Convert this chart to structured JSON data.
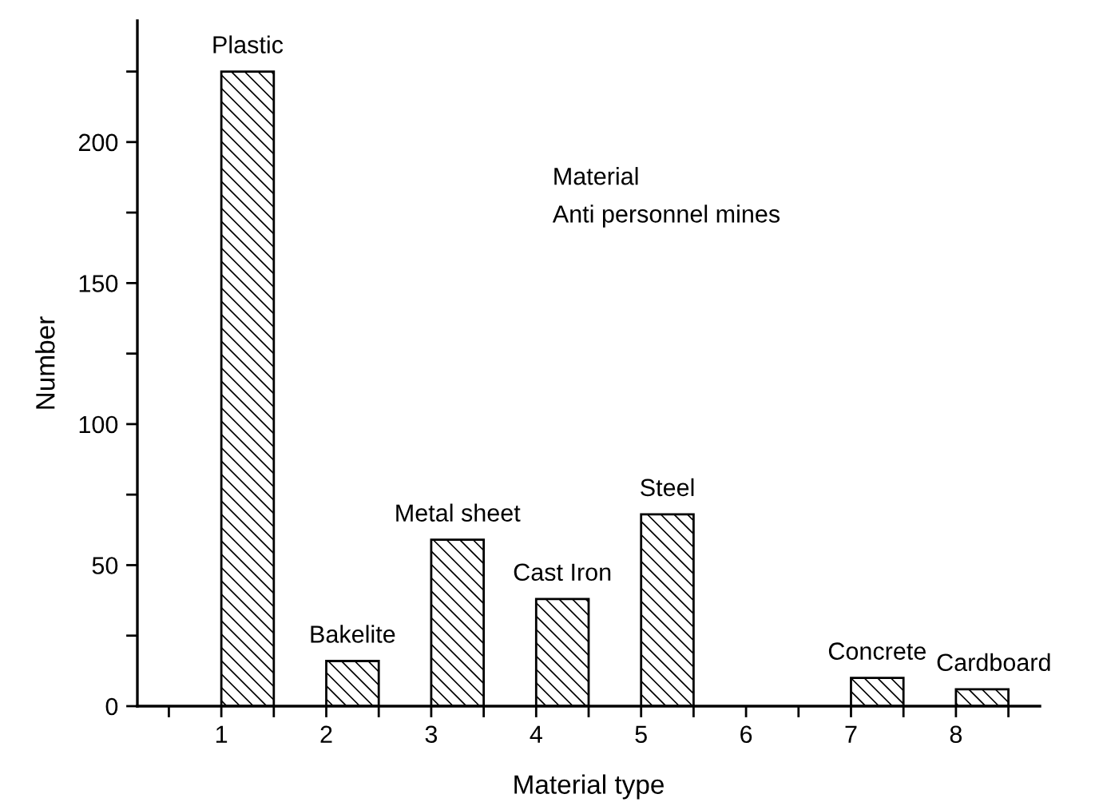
{
  "chart_data": {
    "type": "bar",
    "xlabel": "Material type",
    "ylabel": "Number",
    "x": [
      1.25,
      2.25,
      3.25,
      4.25,
      5.25,
      7.25,
      8.25
    ],
    "series": [
      {
        "color": "#000000",
        "values": [
          225,
          16,
          59,
          38,
          68,
          10,
          6
        ]
      }
    ],
    "xlim": [
      0.2,
      8.8
    ],
    "ylim": [
      0,
      243
    ],
    "xticks": [
      {
        "value": 0.5,
        "label": null
      },
      1,
      {
        "value": 1.5,
        "label": null
      },
      2,
      {
        "value": 2.5,
        "label": null
      },
      3,
      {
        "value": 3.5,
        "label": null
      },
      4,
      {
        "value": 4.5,
        "label": null
      },
      5,
      {
        "value": 5.5,
        "label": null
      },
      6,
      {
        "value": 6.5,
        "label": null
      },
      7,
      {
        "value": 7.5,
        "label": null
      },
      8,
      {
        "value": 8.5,
        "label": null
      }
    ],
    "yticks": [
      0,
      {
        "value": 25,
        "label": null
      },
      50,
      {
        "value": 75,
        "label": null
      },
      100,
      {
        "value": 125,
        "label": null
      },
      150,
      {
        "value": 175,
        "label": null
      },
      200,
      {
        "value": 225,
        "label": null
      }
    ],
    "annotations": [
      {
        "text": "Plastic",
        "x": 1.25,
        "y": 225
      },
      {
        "text": "Bakelite",
        "x": 2.25,
        "y": 16
      },
      {
        "text": "Metal sheet",
        "x": 3.25,
        "y": 59
      },
      {
        "text": "Cast Iron",
        "x": 4.25,
        "y": 38
      },
      {
        "text": "Steel",
        "x": 5.25,
        "y": 68
      },
      {
        "text": "Concrete",
        "x": 7.25,
        "y": 10
      },
      {
        "text": "Cardboard",
        "x": 8.25,
        "y": 6
      },
      "Material",
      "Anti personnel mines"
    ],
    "grid": false,
    "legend": false
  }
}
